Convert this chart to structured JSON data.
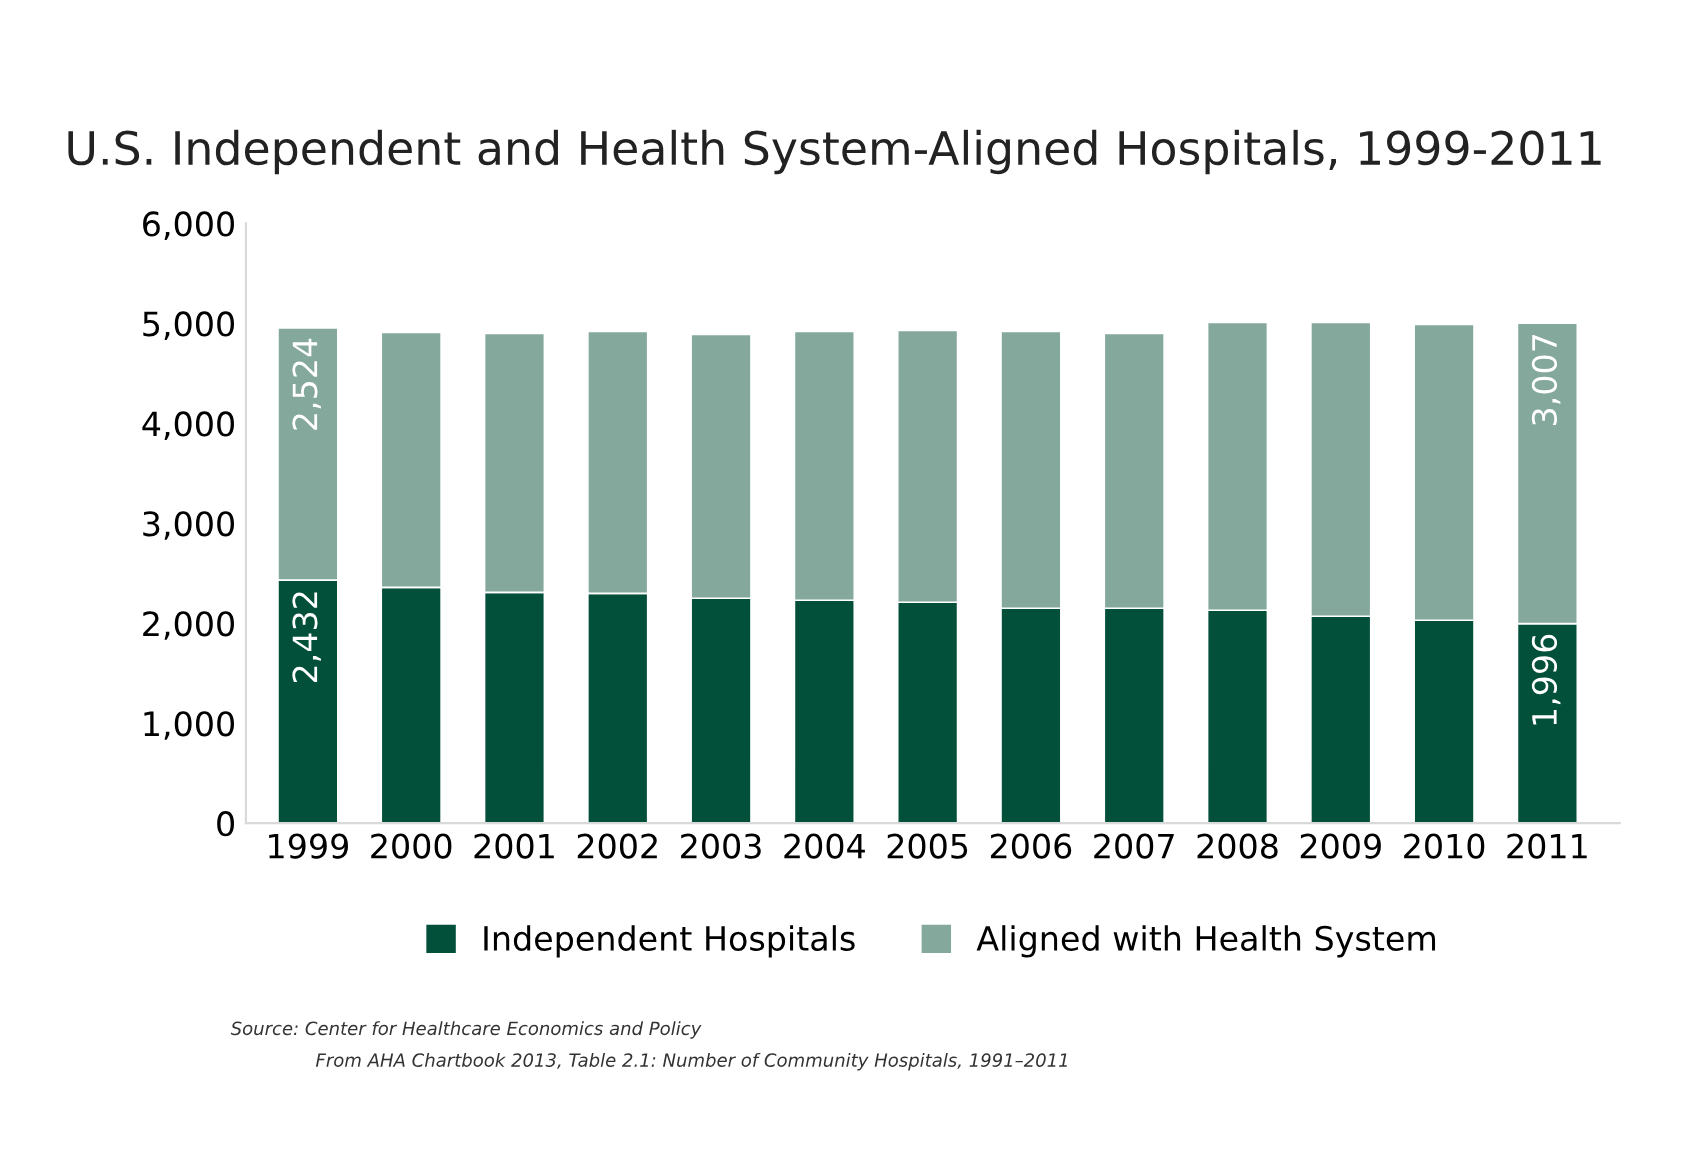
{
  "chart_data": {
    "type": "bar",
    "title": "U.S. Independent and Health System-Aligned Hospitals, 1999-2011",
    "categories": [
      "1999",
      "2000",
      "2001",
      "2002",
      "2003",
      "2004",
      "2005",
      "2006",
      "2007",
      "2008",
      "2009",
      "2010",
      "2011"
    ],
    "stacked": true,
    "series": [
      {
        "name": "Independent Hospitals",
        "color": "#02503a",
        "values": [
          2432,
          2360,
          2310,
          2300,
          2250,
          2230,
          2210,
          2150,
          2150,
          2130,
          2070,
          2030,
          1996
        ],
        "value_labels": [
          "2,432",
          null,
          null,
          null,
          null,
          null,
          null,
          null,
          null,
          null,
          null,
          null,
          "1,996"
        ]
      },
      {
        "name": "Aligned with Health System",
        "color": "#84a99c",
        "values": [
          2524,
          2550,
          2590,
          2620,
          2640,
          2690,
          2720,
          2770,
          2750,
          2880,
          2940,
          2960,
          3007
        ],
        "value_labels": [
          "2,524",
          null,
          null,
          null,
          null,
          null,
          null,
          null,
          null,
          null,
          null,
          null,
          "3,007"
        ]
      }
    ],
    "ylim": [
      0,
      6000
    ],
    "yticks": [
      {
        "value": 0,
        "label": "0"
      },
      {
        "value": 1000,
        "label": "1,000"
      },
      {
        "value": 2000,
        "label": "2,000"
      },
      {
        "value": 3000,
        "label": "3,000"
      },
      {
        "value": 4000,
        "label": "4,000"
      },
      {
        "value": 5000,
        "label": "5,000"
      },
      {
        "value": 6000,
        "label": "6,000"
      }
    ],
    "grid": false,
    "legend": "bottom",
    "annotations": [
      "Source: Center for Healthcare Economics and Policy",
      "From AHA Chartbook 2013, Table 2.1: Number of Community Hospitals, 1991–2011"
    ]
  }
}
